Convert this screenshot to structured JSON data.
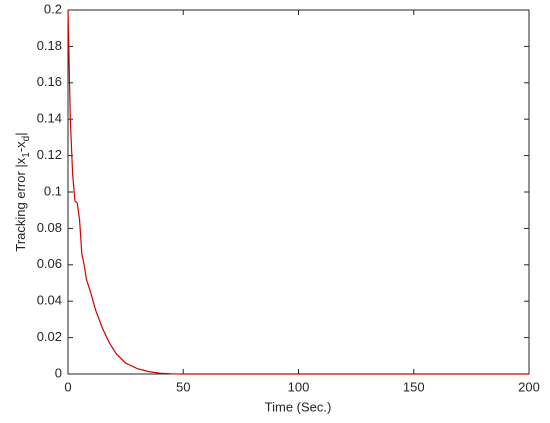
{
  "chart_data": {
    "type": "line",
    "xlabel": "Time (Sec.)",
    "ylabel": [
      {
        "text": "Tracking error |x"
      },
      {
        "text": "1",
        "sub": true
      },
      {
        "text": "-x"
      },
      {
        "text": "d",
        "sub": true
      },
      {
        "text": "|"
      }
    ],
    "x": [
      0,
      0.5,
      1,
      2,
      3,
      4,
      5,
      6,
      7,
      8,
      10,
      12,
      15,
      18,
      21,
      25,
      30,
      35,
      40,
      45,
      50,
      200
    ],
    "series": [
      {
        "color": "#d40000",
        "values": [
          0.2,
          0.17,
          0.14,
          0.11,
          0.095,
          0.094,
          0.085,
          0.066,
          0.06,
          0.052,
          0.044,
          0.035,
          0.025,
          0.017,
          0.011,
          0.006,
          0.003,
          0.0013,
          0.0004,
          0.0001,
          0,
          0
        ]
      }
    ],
    "xlim": [
      0,
      200
    ],
    "xticks": [
      0,
      50,
      100,
      150,
      200
    ],
    "ylim": [
      0,
      0.2
    ],
    "yticks": [
      0,
      0.02,
      0.04,
      0.06,
      0.08,
      0.1,
      0.12,
      0.14,
      0.16,
      0.18,
      0.2
    ],
    "grid": false
  }
}
